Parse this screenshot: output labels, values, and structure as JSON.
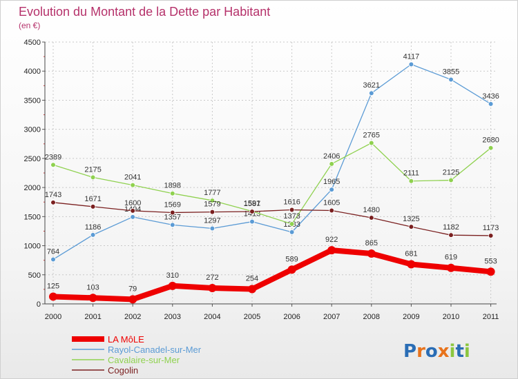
{
  "chart_data": {
    "type": "line",
    "title": "Evolution du Montant de la Dette par Habitant",
    "subtitle": "(en €)",
    "xlabel": "",
    "ylabel": "",
    "categories": [
      "2000",
      "2001",
      "2002",
      "2003",
      "2004",
      "2005",
      "2006",
      "2007",
      "2008",
      "2009",
      "2010",
      "2011"
    ],
    "y_ticks": [
      "0",
      "500",
      "1000",
      "1500",
      "2000",
      "2500",
      "3000",
      "3500",
      "4000",
      "4500"
    ],
    "ylim": [
      0,
      4500
    ],
    "grid": true,
    "legend_position": "bottom-left",
    "series": [
      {
        "name": "LA MôLE",
        "color": "#ee0000",
        "values": [
          125,
          103,
          79,
          310,
          272,
          254,
          589,
          922,
          865,
          681,
          619,
          553
        ],
        "labels": [
          "125",
          "103",
          "79",
          "310",
          "272",
          "254",
          "589",
          "922",
          "865",
          "681",
          "619",
          "553"
        ]
      },
      {
        "name": "Rayol-Canadel-sur-Mer",
        "color": "#5b9bd5",
        "values": [
          764,
          1186,
          1494,
          1357,
          1297,
          1413,
          1233,
          1965,
          3621,
          4117,
          3855,
          3436
        ],
        "labels": [
          "764",
          "1186",
          "1494",
          "1357",
          "1297",
          "1413",
          "1233",
          "1965",
          "3621",
          "4117",
          "3855",
          "3436"
        ]
      },
      {
        "name": "Cavalaire-sur-Mer",
        "color": "#8fd14f",
        "values": [
          2389,
          2175,
          2041,
          1898,
          1777,
          1591,
          1373,
          2406,
          2765,
          2111,
          2125,
          2680
        ],
        "labels": [
          "2389",
          "2175",
          "2041",
          "1898",
          "1777",
          "1591",
          "1373",
          "2406",
          "2765",
          "2111",
          "2125",
          "2680"
        ]
      },
      {
        "name": "Cogolin",
        "color": "#7a1f1f",
        "values": [
          1743,
          1671,
          1600,
          1569,
          1579,
          1587,
          1616,
          1605,
          1480,
          1325,
          1182,
          1173
        ],
        "labels": [
          "1743",
          "1671",
          "1600",
          "1569",
          "1579",
          "1587",
          "1616",
          "1605",
          "1480",
          "1325",
          "1182",
          "1173"
        ]
      }
    ]
  },
  "logo": {
    "text": "Proxiti",
    "letters": [
      "P",
      "r",
      "o",
      "x",
      "i",
      "t",
      "i"
    ],
    "colors": [
      "#2a6db5",
      "#e8731c",
      "#2a6db5",
      "#e8731c",
      "#8cc63f",
      "#2a6db5",
      "#8cc63f"
    ]
  }
}
